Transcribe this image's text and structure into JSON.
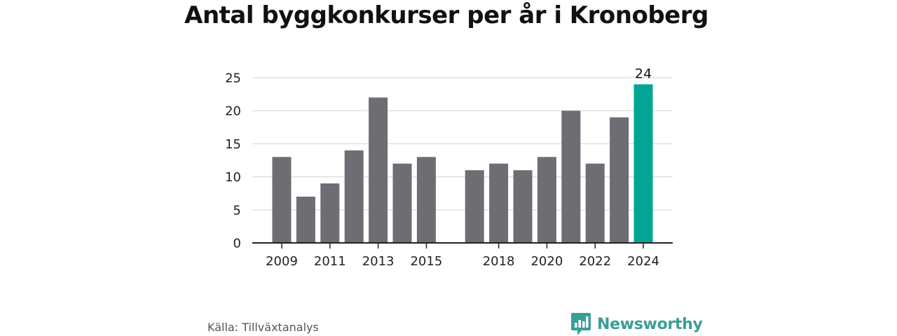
{
  "chart_data": {
    "type": "bar",
    "title": "Antal byggkonkurser per år i Kronoberg",
    "categories": [
      "2009",
      "2010",
      "2011",
      "2012",
      "2013",
      "2014",
      "2015",
      "2016",
      "2017",
      "2018",
      "2019",
      "2020",
      "2021",
      "2022",
      "2023",
      "2024"
    ],
    "values": [
      13,
      7,
      9,
      14,
      22,
      12,
      13,
      null,
      11,
      12,
      11,
      13,
      20,
      12,
      19,
      24
    ],
    "x_tick_labels": [
      "2009",
      "2011",
      "2013",
      "2015",
      "2018",
      "2020",
      "2022",
      "2024"
    ],
    "y_ticks": [
      0,
      5,
      10,
      15,
      20,
      25
    ],
    "ylim": [
      0,
      25
    ],
    "xlabel": "",
    "ylabel": "",
    "grid": true,
    "highlight": {
      "category": "2024",
      "label": "24"
    },
    "colors": {
      "bar": "#6e6d73",
      "highlight": "#00a693",
      "grid": "#d9d9d9",
      "axis": "#222222"
    }
  },
  "footer": {
    "source": "Källa: Tillväxtanalys",
    "brand": "Newsworthy",
    "brand_icon": "bar-chart-logo-icon",
    "brand_color": "#3a9e98"
  }
}
